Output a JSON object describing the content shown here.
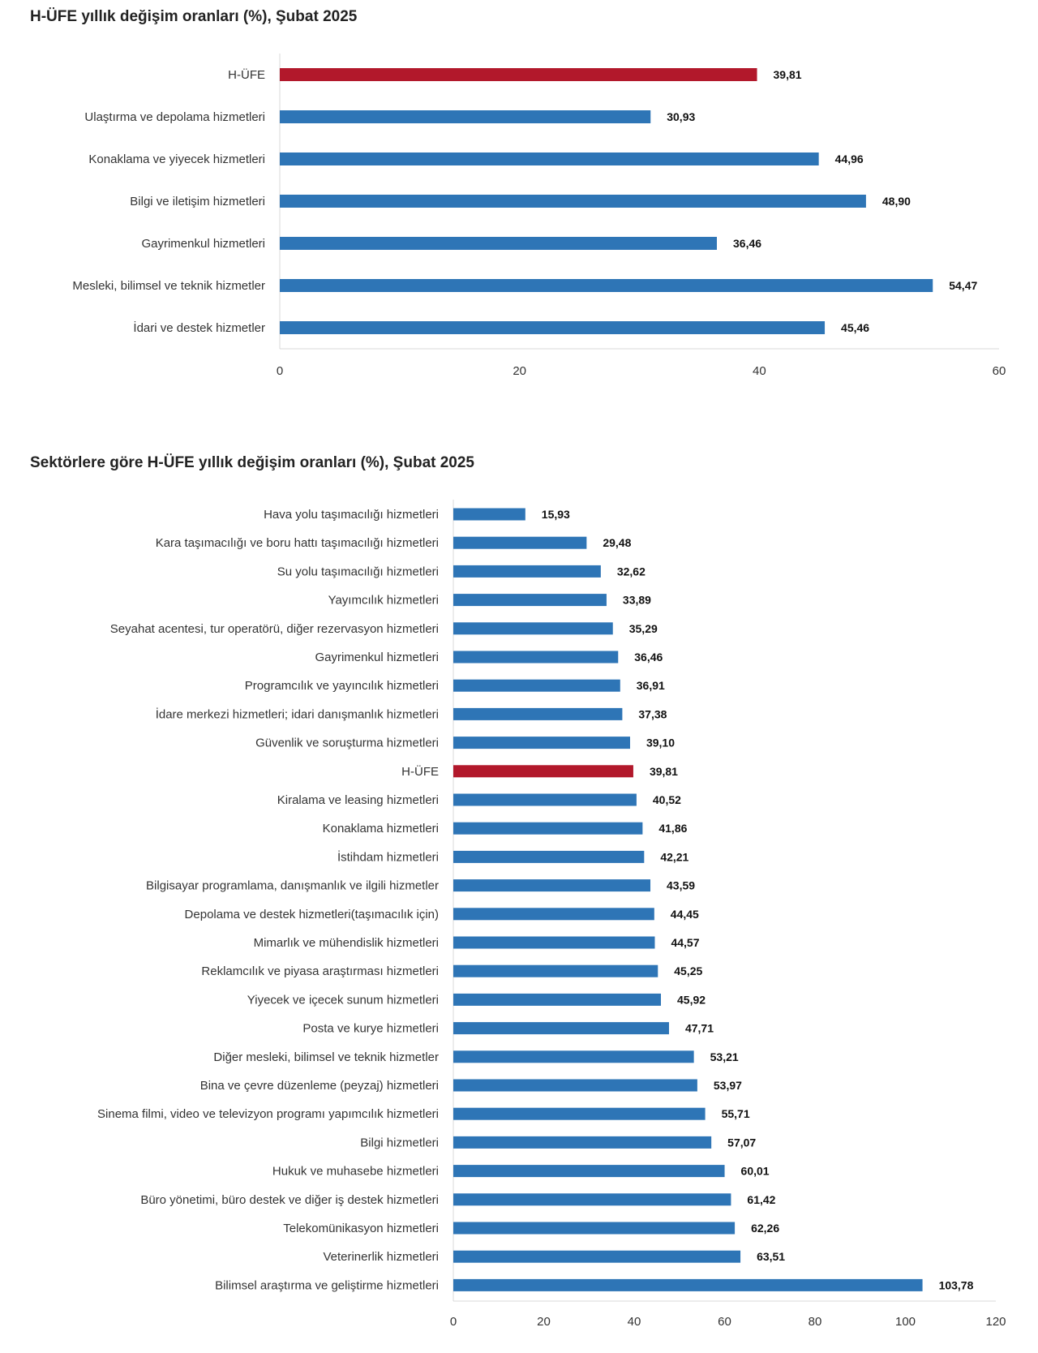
{
  "chart_data": [
    {
      "type": "bar",
      "orientation": "horizontal",
      "title": "H-ÜFE yıllık değişim oranları (%), Şubat 2025",
      "categories": [
        "H-ÜFE",
        "Ulaştırma ve depolama hizmetleri",
        "Konaklama ve yiyecek hizmetleri",
        "Bilgi ve iletişim hizmetleri",
        "Gayrimenkul hizmetleri",
        "Mesleki, bilimsel ve teknik hizmetler",
        "İdari ve destek hizmetler"
      ],
      "values": [
        39.81,
        30.93,
        44.96,
        48.9,
        36.46,
        54.47,
        45.46
      ],
      "value_labels": [
        "39,81",
        "30,93",
        "44,96",
        "48,90",
        "36,46",
        "54,47",
        "45,46"
      ],
      "highlight_category": "H-ÜFE",
      "xlim": [
        0,
        60
      ],
      "xticks": [
        0,
        20,
        40,
        60
      ],
      "grid": false,
      "colors": {
        "bar": "#2e75b6",
        "highlight": "#b2182b"
      }
    },
    {
      "type": "bar",
      "orientation": "horizontal",
      "title": "Sektörlere göre H-ÜFE yıllık değişim oranları (%), Şubat 2025",
      "categories": [
        "Hava yolu taşımacılığı hizmetleri",
        "Kara taşımacılığı ve boru hattı taşımacılığı hizmetleri",
        "Su yolu taşımacılığı hizmetleri",
        "Yayımcılık hizmetleri",
        "Seyahat acentesi, tur operatörü, diğer rezervasyon hizmetleri",
        "Gayrimenkul hizmetleri",
        "Programcılık ve yayıncılık hizmetleri",
        "İdare merkezi hizmetleri; idari danışmanlık hizmetleri",
        "Güvenlik ve soruşturma hizmetleri",
        "H-ÜFE",
        "Kiralama ve leasing hizmetleri",
        "Konaklama hizmetleri",
        "İstihdam hizmetleri",
        "Bilgisayar programlama, danışmanlık ve ilgili hizmetler",
        "Depolama ve destek hizmetleri(taşımacılık için)",
        "Mimarlık ve mühendislik hizmetleri",
        "Reklamcılık ve piyasa araştırması hizmetleri",
        "Yiyecek ve içecek sunum hizmetleri",
        "Posta ve kurye hizmetleri",
        "Diğer mesleki, bilimsel ve teknik hizmetler",
        "Bina ve çevre düzenleme (peyzaj) hizmetleri",
        "Sinema filmi, video ve televizyon programı yapımcılık hizmetleri",
        "Bilgi hizmetleri",
        "Hukuk ve muhasebe hizmetleri",
        "Büro yönetimi, büro destek ve diğer iş destek hizmetleri",
        "Telekomünikasyon hizmetleri",
        "Veterinerlik hizmetleri",
        "Bilimsel araştırma ve geliştirme hizmetleri"
      ],
      "values": [
        15.93,
        29.48,
        32.62,
        33.89,
        35.29,
        36.46,
        36.91,
        37.38,
        39.1,
        39.81,
        40.52,
        41.86,
        42.21,
        43.59,
        44.45,
        44.57,
        45.25,
        45.92,
        47.71,
        53.21,
        53.97,
        55.71,
        57.07,
        60.01,
        61.42,
        62.26,
        63.51,
        103.78
      ],
      "value_labels": [
        "15,93",
        "29,48",
        "32,62",
        "33,89",
        "35,29",
        "36,46",
        "36,91",
        "37,38",
        "39,10",
        "39,81",
        "40,52",
        "41,86",
        "42,21",
        "43,59",
        "44,45",
        "44,57",
        "45,25",
        "45,92",
        "47,71",
        "53,21",
        "53,97",
        "55,71",
        "57,07",
        "60,01",
        "61,42",
        "62,26",
        "63,51",
        "103,78"
      ],
      "highlight_category": "H-ÜFE",
      "xlim": [
        0,
        120
      ],
      "xticks": [
        0,
        20,
        40,
        60,
        80,
        100,
        120
      ],
      "grid": false,
      "colors": {
        "bar": "#2e75b6",
        "highlight": "#b2182b"
      }
    }
  ]
}
